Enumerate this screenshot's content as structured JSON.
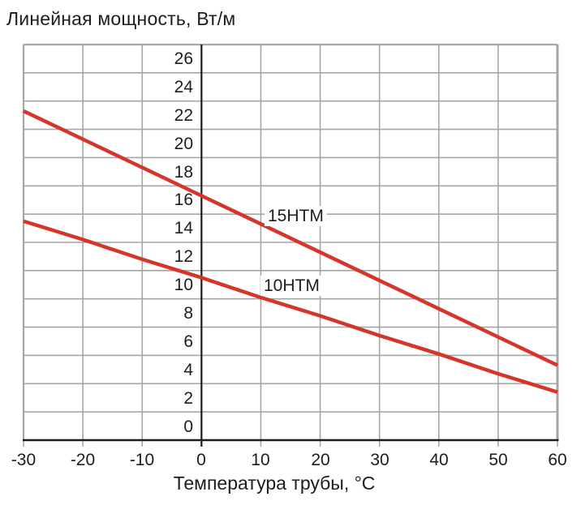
{
  "chart_data": {
    "type": "line",
    "title": "Линейная мощность, Вт/м",
    "xlabel": "Температура трубы, °C",
    "ylabel": "Линейная мощность, Вт/м",
    "xlim": [
      -30,
      60
    ],
    "ylim": [
      -1,
      27
    ],
    "grid": true,
    "legend_position": "inline-labels-on-chart",
    "x_ticks": [
      -30,
      -20,
      -10,
      0,
      10,
      20,
      30,
      40,
      50,
      60
    ],
    "y_ticks_top_to_bottom": [
      26,
      24,
      22,
      20,
      18,
      16,
      14,
      12,
      10,
      8,
      6,
      4,
      2,
      0
    ],
    "series": [
      {
        "name": "15HTM",
        "color": "#d5362c",
        "x": [
          -30,
          -20,
          -10,
          0,
          10,
          20,
          30,
          40,
          50,
          60
        ],
        "values": [
          22.3,
          20.3,
          18.3,
          16.3,
          14.3,
          12.3,
          10.3,
          8.3,
          6.3,
          4.3
        ]
      },
      {
        "name": "10HTM",
        "color": "#d5362c",
        "x": [
          -30,
          -20,
          -10,
          0,
          10,
          20,
          30,
          40,
          50,
          60
        ],
        "values": [
          14.5,
          13.2,
          11.8,
          10.5,
          9.1,
          7.8,
          6.4,
          5.1,
          3.7,
          2.4
        ]
      }
    ],
    "style": {
      "line_color": "#d5362c",
      "grid_color": "#a6a6a6",
      "axis_color": "#1c1c1c",
      "text_color": "#1d1d1d"
    }
  }
}
